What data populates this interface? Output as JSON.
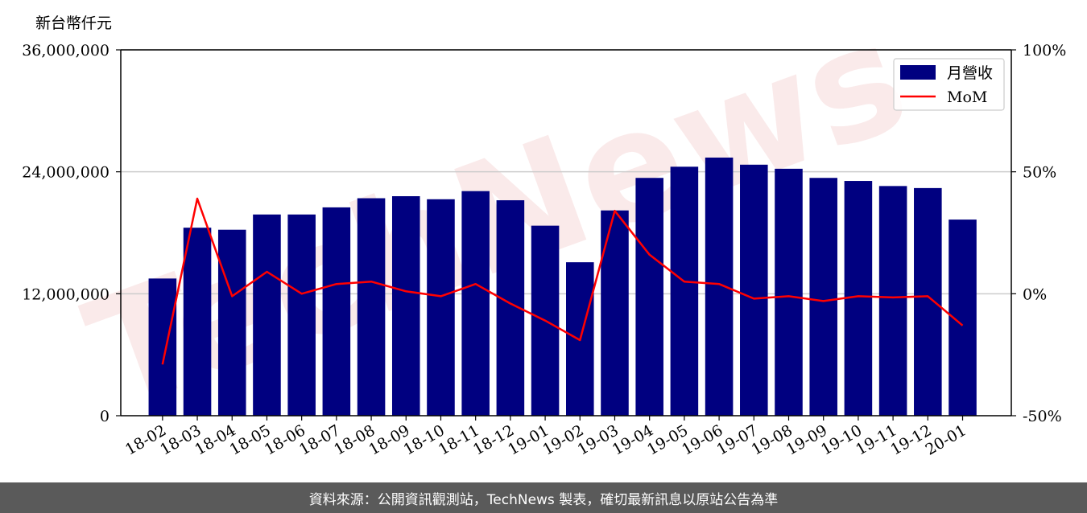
{
  "chart_data": {
    "type": "bar",
    "y_unit_label": "新台幣仟元",
    "categories": [
      "18-02",
      "18-03",
      "18-04",
      "18-05",
      "18-06",
      "18-07",
      "18-08",
      "18-09",
      "18-10",
      "18-11",
      "18-12",
      "19-01",
      "19-02",
      "19-03",
      "19-04",
      "19-05",
      "19-06",
      "19-07",
      "19-08",
      "19-09",
      "19-10",
      "19-11",
      "19-12",
      "20-01"
    ],
    "series": [
      {
        "name": "月營收",
        "kind": "bar",
        "axis": "left",
        "color": "#000080",
        "values": [
          13500000,
          18500000,
          18300000,
          19800000,
          19800000,
          20500000,
          21400000,
          21600000,
          21300000,
          22100000,
          21200000,
          18700000,
          15100000,
          20200000,
          23400000,
          24500000,
          25400000,
          24700000,
          24300000,
          23400000,
          23100000,
          22600000,
          22400000,
          19300000
        ]
      },
      {
        "name": "MoM",
        "kind": "line",
        "axis": "right",
        "color": "#ff0000",
        "values": [
          -29,
          39,
          -1,
          9,
          0,
          4,
          5,
          1,
          -1,
          4,
          -4,
          -11,
          -19,
          34,
          16,
          5,
          4,
          -2,
          -1,
          -3,
          -1,
          -1.5,
          -1,
          -13
        ]
      }
    ],
    "ylim_left": [
      0,
      36000000
    ],
    "yticks_left": [
      "0",
      "12,000,000",
      "24,000,000",
      "36,000,000"
    ],
    "ylim_right": [
      -50,
      100
    ],
    "yticks_right": [
      "-50%",
      "0%",
      "50%",
      "100%"
    ],
    "legend_position": "top-right",
    "grid": "horizontal"
  },
  "watermark": "TechNews",
  "footer_text": "資料來源：公開資訊觀測站，TechNews 製表，確切最新訊息以原站公告為準"
}
